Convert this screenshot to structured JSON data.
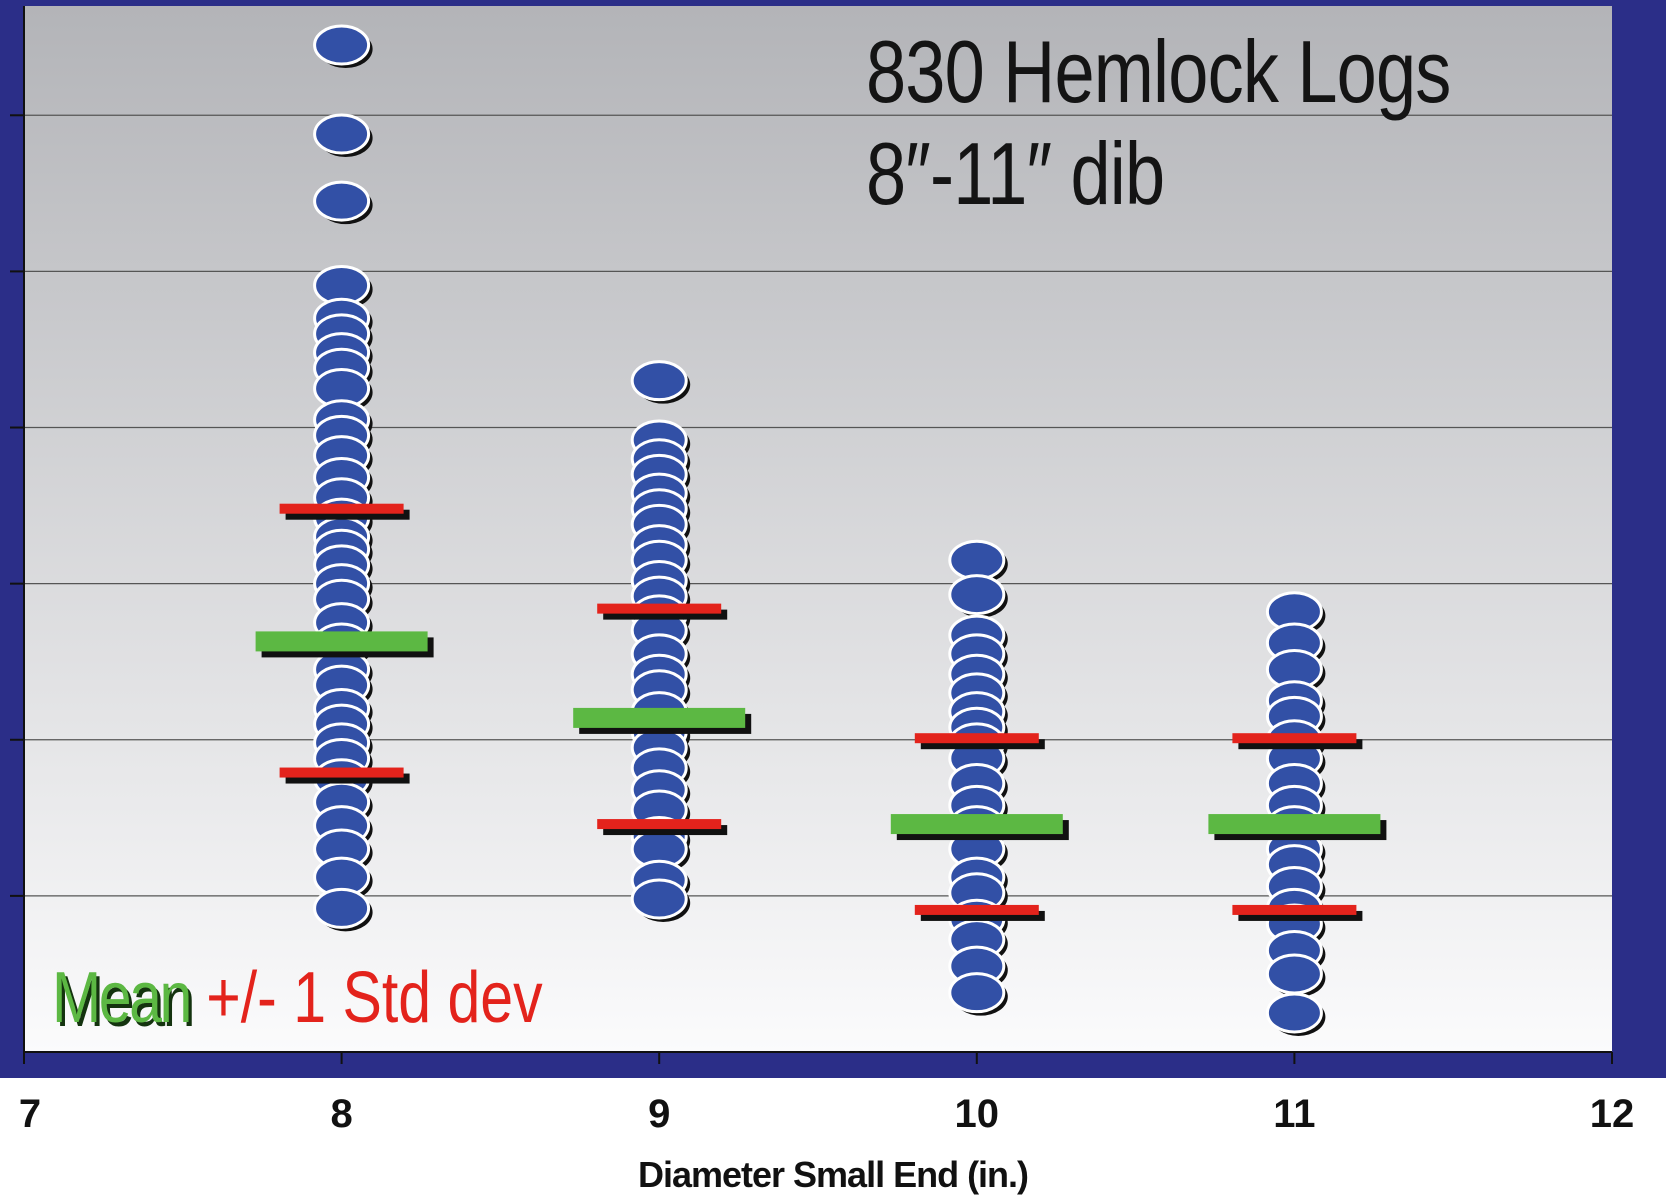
{
  "chart_data": {
    "type": "scatter",
    "title": "830 Hemlock Logs",
    "subtitle": "8″-11″ dib",
    "xlabel": "Diameter Small End (in.)",
    "ylabel": "",
    "xlim": [
      7,
      12
    ],
    "ylim": [
      0,
      6.7
    ],
    "x_ticks": [
      "7",
      "8",
      "9",
      "10",
      "11",
      "12"
    ],
    "y_tick_labels_shown": false,
    "grid": true,
    "legend": {
      "position": "bottom-left",
      "mean_label": "Mean",
      "sd_label": "+/- 1 Std dev"
    },
    "colors": {
      "points": "#3250a6",
      "mean": "#5cb843",
      "sd": "#e3231c",
      "frame": "#2b2e88"
    },
    "series": [
      {
        "x": 8,
        "y": [
          6.45,
          5.88,
          5.45,
          4.91,
          4.7,
          4.6,
          4.48,
          4.38,
          4.25,
          4.05,
          3.95,
          3.82,
          3.68,
          3.55,
          3.42,
          3.3,
          3.22,
          3.12,
          3.0,
          2.9,
          2.75,
          2.62,
          2.45,
          2.35,
          2.2,
          2.1,
          1.98,
          1.88,
          1.75,
          1.6,
          1.45,
          1.3,
          1.12,
          0.92
        ],
        "mean": 2.63,
        "sd_upper": 3.48,
        "sd_lower": 1.79
      },
      {
        "x": 9,
        "y": [
          4.3,
          3.92,
          3.8,
          3.7,
          3.58,
          3.48,
          3.38,
          3.25,
          3.15,
          3.02,
          2.92,
          2.8,
          2.7,
          2.55,
          2.42,
          2.32,
          2.18,
          2.05,
          1.95,
          1.82,
          1.68,
          1.55,
          1.38,
          1.3,
          1.1,
          0.98
        ],
        "mean": 2.14,
        "sd_upper": 2.84,
        "sd_lower": 1.46
      },
      {
        "x": 10,
        "y": [
          3.15,
          2.93,
          2.67,
          2.55,
          2.42,
          2.3,
          2.18,
          2.08,
          1.98,
          1.88,
          1.72,
          1.58,
          1.45,
          1.3,
          1.12,
          1.02,
          0.85,
          0.72,
          0.55,
          0.38
        ],
        "mean": 1.46,
        "sd_upper": 2.01,
        "sd_lower": 0.91
      },
      {
        "x": 11,
        "y": [
          2.82,
          2.62,
          2.45,
          2.25,
          2.15,
          2.0,
          1.88,
          1.72,
          1.58,
          1.45,
          1.3,
          1.2,
          1.06,
          0.92,
          0.82,
          0.65,
          0.5,
          0.25
        ],
        "mean": 1.46,
        "sd_upper": 2.01,
        "sd_lower": 0.91
      }
    ]
  }
}
